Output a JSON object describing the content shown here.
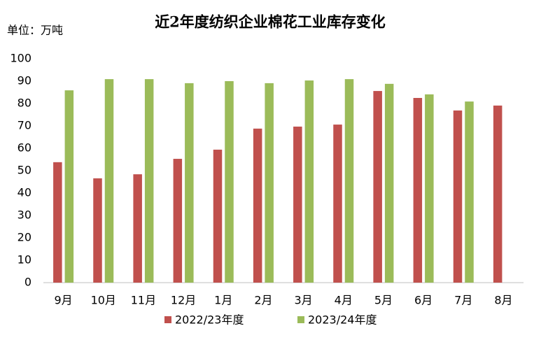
{
  "chart_data": {
    "type": "bar",
    "title": "近2年度纺织企业棉花工业库存变化",
    "y_axis_label": "单位：万吨",
    "categories": [
      "9月",
      "10月",
      "11月",
      "12月",
      "1月",
      "2月",
      "3月",
      "4月",
      "5月",
      "6月",
      "7月",
      "8月"
    ],
    "series": [
      {
        "name": "2022/23年度",
        "color": "#c0504d",
        "values": [
          53.8,
          46.6,
          48.4,
          55.3,
          59.4,
          68.8,
          69.7,
          70.6,
          85.6,
          82.5,
          76.9,
          79.1
        ]
      },
      {
        "name": "2023/24年度",
        "color": "#9bbb59",
        "values": [
          85.9,
          90.9,
          90.9,
          89.1,
          90.0,
          89.1,
          90.3,
          90.9,
          88.8,
          84.1,
          80.9,
          null
        ]
      }
    ],
    "ylim": [
      0,
      100
    ],
    "yticks": [
      0,
      10,
      20,
      30,
      40,
      50,
      60,
      70,
      80,
      90,
      100
    ],
    "grid": false,
    "legend": "bottom"
  }
}
